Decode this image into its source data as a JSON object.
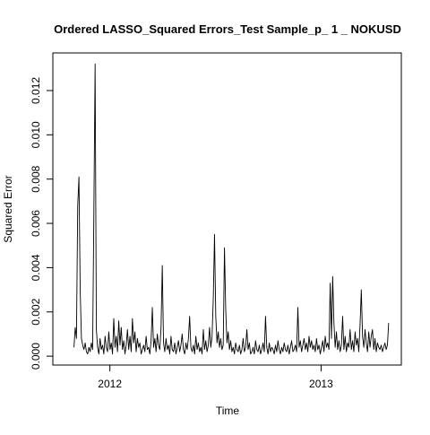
{
  "chart_data": {
    "type": "line",
    "title": "Ordered LASSO_Squared Errors_Test Sample_p_ 1 _ NOKUSD",
    "xlabel": "Time",
    "ylabel": "Squared Error",
    "x_ticks": [
      {
        "label": "2012",
        "value": 2012.0
      },
      {
        "label": "2013",
        "value": 2013.0
      }
    ],
    "y_ticks": [
      "0.000",
      "0.002",
      "0.004",
      "0.006",
      "0.008",
      "0.010",
      "0.012"
    ],
    "xlim": [
      2011.73,
      2013.38
    ],
    "ylim": [
      -0.0004,
      0.0137
    ],
    "grid": false,
    "legend": "none",
    "x_start": 2011.83,
    "x_end": 2013.32,
    "values": [
      0.0004,
      0.0013,
      0.0008,
      0.0068,
      0.0081,
      0.003,
      0.0008,
      0.0005,
      0.0003,
      0.0006,
      0.0002,
      0.0001,
      0.0004,
      0.0002,
      0.0006,
      0.0003,
      0.0066,
      0.0132,
      0.0012,
      0.0004,
      0.0001,
      0.0008,
      0.0003,
      0.0005,
      0.0001,
      0.0009,
      0.0004,
      0.0002,
      0.0011,
      0.0003,
      0.0006,
      0.0001,
      0.0017,
      0.0004,
      0.0009,
      0.0002,
      0.0016,
      0.0005,
      0.0013,
      0.0003,
      0.0007,
      0.0001,
      0.0005,
      0.0012,
      0.0003,
      0.0009,
      0.0002,
      0.0017,
      0.0006,
      0.0011,
      0.0002,
      0.0008,
      0.0004,
      0.0006,
      0.0001,
      0.0003,
      0.0005,
      0.0002,
      0.0009,
      0.0003,
      0.0004,
      0.0001,
      0.0007,
      0.0022,
      0.0004,
      0.0008,
      0.0002,
      0.001,
      0.0005,
      0.0003,
      0.0013,
      0.0041,
      0.0006,
      0.0002,
      0.0008,
      0.0003,
      0.0005,
      0.0001,
      0.0009,
      0.0003,
      0.0002,
      0.0006,
      0.0001,
      0.0004,
      0.0007,
      0.0002,
      0.0005,
      0.001,
      0.0003,
      0.0001,
      0.0006,
      0.0003,
      0.0008,
      0.0018,
      0.0004,
      0.0002,
      0.0005,
      0.0001,
      0.0009,
      0.0003,
      0.0006,
      0.0002,
      0.0004,
      0.0001,
      0.0012,
      0.0003,
      0.0007,
      0.0002,
      0.0005,
      0.0013,
      0.0004,
      0.0009,
      0.0026,
      0.0055,
      0.0018,
      0.0006,
      0.0011,
      0.0004,
      0.0008,
      0.0003,
      0.0005,
      0.0049,
      0.0021,
      0.0006,
      0.0011,
      0.0003,
      0.0007,
      0.0002,
      0.0004,
      0.0001,
      0.0006,
      0.0003,
      0.0002,
      0.0005,
      0.0001,
      0.0003,
      0.0008,
      0.0002,
      0.0004,
      0.0012,
      0.0003,
      0.0006,
      0.0001,
      0.0002,
      0.0004,
      0.0001,
      0.0007,
      0.0003,
      0.0002,
      0.0005,
      0.0001,
      0.0003,
      0.0006,
      0.0002,
      0.0018,
      0.0004,
      0.0001,
      0.0006,
      0.0002,
      0.0004,
      0.0003,
      0.0001,
      0.0005,
      0.0002,
      0.0007,
      0.0003,
      0.0001,
      0.0004,
      0.0002,
      0.0006,
      0.0003,
      0.0002,
      0.0005,
      0.0001,
      0.0004,
      0.0007,
      0.0002,
      0.0003,
      0.0005,
      0.0002,
      0.0022,
      0.0004,
      0.0007,
      0.0002,
      0.0005,
      0.0008,
      0.0003,
      0.0006,
      0.0002,
      0.0009,
      0.0004,
      0.0007,
      0.0003,
      0.0005,
      0.0002,
      0.0008,
      0.0003,
      0.0005,
      0.0001,
      0.0004,
      0.0007,
      0.0002,
      0.0009,
      0.0004,
      0.0006,
      0.0003,
      0.0033,
      0.0008,
      0.0036,
      0.0015,
      0.0004,
      0.0011,
      0.0003,
      0.0007,
      0.0002,
      0.0005,
      0.0018,
      0.0003,
      0.0009,
      0.0002,
      0.0006,
      0.0004,
      0.0012,
      0.0003,
      0.0007,
      0.0002,
      0.0011,
      0.0005,
      0.0008,
      0.0002,
      0.0014,
      0.003,
      0.0009,
      0.0004,
      0.0012,
      0.0006,
      0.0002,
      0.0011,
      0.0004,
      0.0009,
      0.0012,
      0.0003,
      0.0008,
      0.0002,
      0.0006,
      0.0004,
      0.0003,
      0.0005,
      0.0002,
      0.0004,
      0.0006,
      0.0003,
      0.0005,
      0.0015
    ]
  }
}
